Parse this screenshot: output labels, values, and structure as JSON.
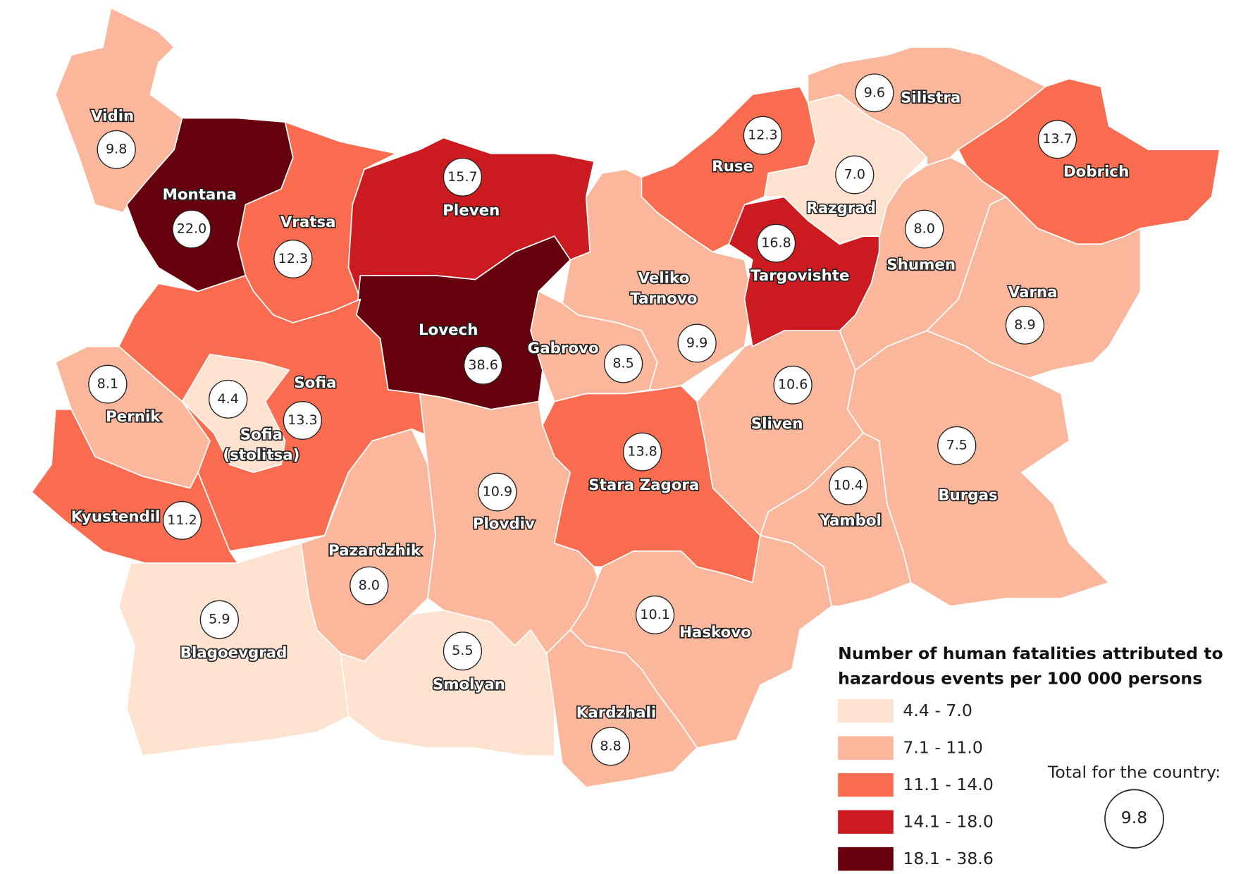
{
  "map": {
    "regions": [
      {
        "name": "Vidin",
        "value": "9.8",
        "color": "#fbb79b"
      },
      {
        "name": "Montana",
        "value": "22.0",
        "color": "#67000d"
      },
      {
        "name": "Vratsa",
        "value": "12.3",
        "color": "#f96c4f"
      },
      {
        "name": "Pleven",
        "value": "15.7",
        "color": "#cc1b20"
      },
      {
        "name": "Lovech",
        "value": "38.6",
        "color": "#67000d"
      },
      {
        "name": "Sofia",
        "value": "13.3",
        "color": "#f96c4f"
      },
      {
        "name": [
          "Sofia",
          "(stolitsa)"
        ],
        "value": "4.4",
        "color": "#fde2cf"
      },
      {
        "name": "Pernik",
        "value": "8.1",
        "color": "#fbb79b"
      },
      {
        "name": "Kyustendil",
        "value": "11.2",
        "color": "#f96c4f"
      },
      {
        "name": "Blagoevgrad",
        "value": "5.9",
        "color": "#fde2cf"
      },
      {
        "name": "Pazardzhik",
        "value": "8.0",
        "color": "#fbb79b"
      },
      {
        "name": "Smolyan",
        "value": "5.5",
        "color": "#fde2cf"
      },
      {
        "name": "Plovdiv",
        "value": "10.9",
        "color": "#fbb79b"
      },
      {
        "name": "Gabrovo",
        "value": "8.5",
        "color": "#fbb79b"
      },
      {
        "name": [
          "Veliko",
          "Tarnovo"
        ],
        "value": "9.9",
        "color": "#fbb79b"
      },
      {
        "name": "Stara Zagora",
        "value": "13.8",
        "color": "#f96c4f"
      },
      {
        "name": "Haskovo",
        "value": "10.1",
        "color": "#fbb79b"
      },
      {
        "name": "Kardzhali",
        "value": "8.8",
        "color": "#fbb79b"
      },
      {
        "name": "Sliven",
        "value": "10.6",
        "color": "#fbb79b"
      },
      {
        "name": "Yambol",
        "value": "10.4",
        "color": "#fbb79b"
      },
      {
        "name": "Burgas",
        "value": "7.5",
        "color": "#fbb79b"
      },
      {
        "name": "Varna",
        "value": "8.9",
        "color": "#fbb79b"
      },
      {
        "name": "Dobrich",
        "value": "13.7",
        "color": "#f96c4f"
      },
      {
        "name": "Shumen",
        "value": "8.0",
        "color": "#fbb79b"
      },
      {
        "name": "Targovishte",
        "value": "16.8",
        "color": "#cc1b20"
      },
      {
        "name": "Razgrad",
        "value": "7.0",
        "color": "#fde2cf"
      },
      {
        "name": "Ruse",
        "value": "12.3",
        "color": "#f96c4f"
      },
      {
        "name": "Silistra",
        "value": "9.6",
        "color": "#fbb79b"
      }
    ],
    "legend": {
      "title": [
        "Number of human fatalities attributed to",
        "hazardous events per 100 000 persons"
      ],
      "classes": [
        {
          "label": "4.4 - 7.0",
          "color": "#fde2cf"
        },
        {
          "label": "7.1 - 11.0",
          "color": "#fbb79b"
        },
        {
          "label": "11.1 - 14.0",
          "color": "#f96c4f"
        },
        {
          "label": "14.1 - 18.0",
          "color": "#cc1b20"
        },
        {
          "label": "18.1 - 38.6",
          "color": "#67000d"
        }
      ]
    },
    "total": {
      "label": "Total for the country:",
      "value": "9.8"
    }
  }
}
